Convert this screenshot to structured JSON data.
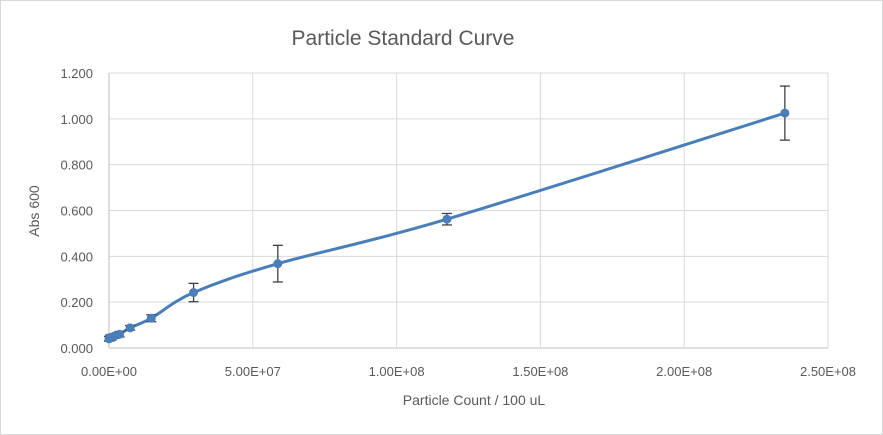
{
  "chart_data": {
    "type": "scatter",
    "title": "Particle Standard Curve",
    "xlabel": "Particle Count / 100 uL",
    "ylabel": "Abs 600",
    "xlim": [
      0,
      250000000
    ],
    "ylim": [
      0,
      1.2
    ],
    "x_ticks": [
      0,
      50000000,
      100000000,
      150000000,
      200000000,
      250000000
    ],
    "x_tick_labels": [
      "0.00E+00",
      "5.00E+07",
      "1.00E+08",
      "1.50E+08",
      "2.00E+08",
      "2.50E+08"
    ],
    "y_ticks": [
      0,
      0.2,
      0.4,
      0.6,
      0.8,
      1.0,
      1.2
    ],
    "y_tick_labels": [
      "0.000",
      "0.200",
      "0.400",
      "0.600",
      "0.800",
      "1.000",
      "1.200"
    ],
    "grid": true,
    "smoothed_line": true,
    "series_color": "#4a7ebb",
    "error_bar_color": "#404040",
    "points": [
      {
        "x": 0,
        "y": 0.04,
        "err": 0.01
      },
      {
        "x": 230000,
        "y": 0.042,
        "err": 0.01
      },
      {
        "x": 460000,
        "y": 0.044,
        "err": 0.012
      },
      {
        "x": 920000,
        "y": 0.047,
        "err": 0.012
      },
      {
        "x": 1840000,
        "y": 0.052,
        "err": 0.01
      },
      {
        "x": 3670000,
        "y": 0.06,
        "err": 0.012
      },
      {
        "x": 7340000,
        "y": 0.088,
        "err": 0.01
      },
      {
        "x": 14700000,
        "y": 0.13,
        "err": 0.015
      },
      {
        "x": 29400000,
        "y": 0.242,
        "err": 0.04
      },
      {
        "x": 58700000,
        "y": 0.368,
        "err": 0.08
      },
      {
        "x": 117500000,
        "y": 0.562,
        "err": 0.025
      },
      {
        "x": 235000000,
        "y": 1.025,
        "err": 0.118
      }
    ]
  }
}
